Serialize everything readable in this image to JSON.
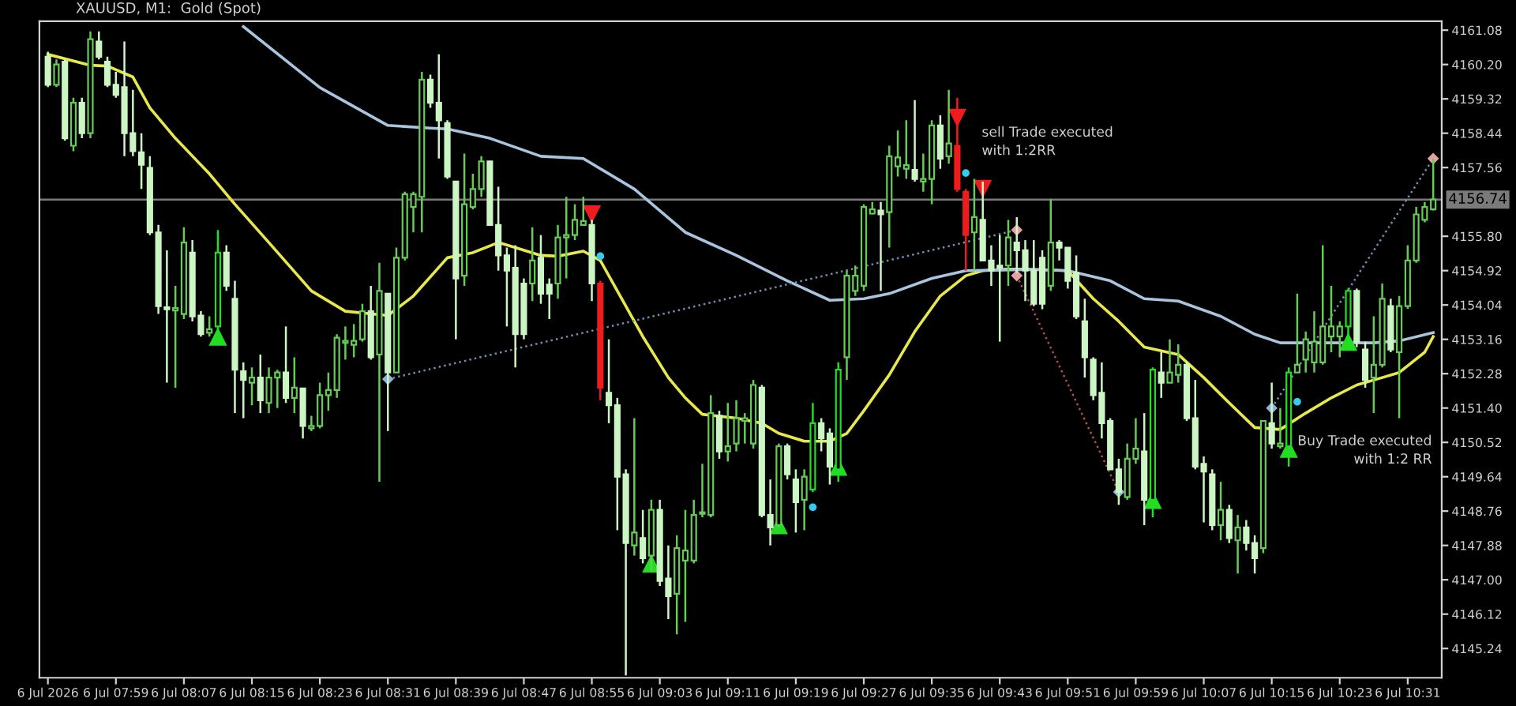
{
  "chart_data": {
    "type": "candlestick",
    "title": "XAUUSD, M1:  Gold (Spot)",
    "x": [
      "2026-07-06T07:51",
      "2026-07-06T07:52",
      "2026-07-06T07:53",
      "2026-07-06T07:54",
      "2026-07-06T07:55",
      "2026-07-06T07:56",
      "2026-07-06T07:57",
      "2026-07-06T07:58",
      "2026-07-06T07:59",
      "2026-07-06T08:00",
      "2026-07-06T08:01",
      "2026-07-06T08:02",
      "2026-07-06T08:03",
      "2026-07-06T08:04",
      "2026-07-06T08:05",
      "2026-07-06T08:06",
      "2026-07-06T08:07",
      "2026-07-06T08:08",
      "2026-07-06T08:09",
      "2026-07-06T08:10",
      "2026-07-06T08:11",
      "2026-07-06T08:12",
      "2026-07-06T08:13",
      "2026-07-06T08:14",
      "2026-07-06T08:15",
      "2026-07-06T08:16",
      "2026-07-06T08:17",
      "2026-07-06T08:18",
      "2026-07-06T08:19",
      "2026-07-06T08:20",
      "2026-07-06T08:21",
      "2026-07-06T08:22",
      "2026-07-06T08:23",
      "2026-07-06T08:24",
      "2026-07-06T08:25",
      "2026-07-06T08:26",
      "2026-07-06T08:27",
      "2026-07-06T08:28",
      "2026-07-06T08:29",
      "2026-07-06T08:30",
      "2026-07-06T08:31",
      "2026-07-06T08:32",
      "2026-07-06T08:33",
      "2026-07-06T08:34",
      "2026-07-06T08:35",
      "2026-07-06T08:36",
      "2026-07-06T08:37",
      "2026-07-06T08:38",
      "2026-07-06T08:39",
      "2026-07-06T08:40",
      "2026-07-06T08:41",
      "2026-07-06T08:42",
      "2026-07-06T08:43",
      "2026-07-06T08:44",
      "2026-07-06T08:45",
      "2026-07-06T08:46",
      "2026-07-06T08:47",
      "2026-07-06T08:48",
      "2026-07-06T08:49",
      "2026-07-06T08:50",
      "2026-07-06T08:51",
      "2026-07-06T08:52",
      "2026-07-06T08:53",
      "2026-07-06T08:54",
      "2026-07-06T08:55",
      "2026-07-06T08:56",
      "2026-07-06T08:57",
      "2026-07-06T08:58",
      "2026-07-06T08:59",
      "2026-07-06T09:00",
      "2026-07-06T09:01",
      "2026-07-06T09:02",
      "2026-07-06T09:03",
      "2026-07-06T09:04",
      "2026-07-06T09:05",
      "2026-07-06T09:06",
      "2026-07-06T09:07",
      "2026-07-06T09:08",
      "2026-07-06T09:09",
      "2026-07-06T09:10",
      "2026-07-06T09:11",
      "2026-07-06T09:12",
      "2026-07-06T09:13",
      "2026-07-06T09:14",
      "2026-07-06T09:15",
      "2026-07-06T09:16",
      "2026-07-06T09:17",
      "2026-07-06T09:18",
      "2026-07-06T09:19",
      "2026-07-06T09:20",
      "2026-07-06T09:21",
      "2026-07-06T09:22",
      "2026-07-06T09:23",
      "2026-07-06T09:24",
      "2026-07-06T09:25",
      "2026-07-06T09:26",
      "2026-07-06T09:27",
      "2026-07-06T09:28",
      "2026-07-06T09:29",
      "2026-07-06T09:30",
      "2026-07-06T09:31",
      "2026-07-06T09:32",
      "2026-07-06T09:33",
      "2026-07-06T09:34",
      "2026-07-06T09:35",
      "2026-07-06T09:36",
      "2026-07-06T09:37",
      "2026-07-06T09:38",
      "2026-07-06T09:39",
      "2026-07-06T09:40",
      "2026-07-06T09:41",
      "2026-07-06T09:42",
      "2026-07-06T09:43",
      "2026-07-06T09:44",
      "2026-07-06T09:45",
      "2026-07-06T09:46",
      "2026-07-06T09:47",
      "2026-07-06T09:48",
      "2026-07-06T09:49",
      "2026-07-06T09:50",
      "2026-07-06T09:51",
      "2026-07-06T09:52",
      "2026-07-06T09:53",
      "2026-07-06T09:54",
      "2026-07-06T09:55",
      "2026-07-06T09:56",
      "2026-07-06T09:57",
      "2026-07-06T09:58",
      "2026-07-06T09:59",
      "2026-07-06T10:00",
      "2026-07-06T10:01",
      "2026-07-06T10:02",
      "2026-07-06T10:03",
      "2026-07-06T10:04",
      "2026-07-06T10:05",
      "2026-07-06T10:06",
      "2026-07-06T10:07",
      "2026-07-06T10:08",
      "2026-07-06T10:09",
      "2026-07-06T10:10",
      "2026-07-06T10:11",
      "2026-07-06T10:12",
      "2026-07-06T10:13",
      "2026-07-06T10:14",
      "2026-07-06T10:15",
      "2026-07-06T10:16",
      "2026-07-06T10:17",
      "2026-07-06T10:18",
      "2026-07-06T10:19",
      "2026-07-06T10:20",
      "2026-07-06T10:21",
      "2026-07-06T10:22",
      "2026-07-06T10:23",
      "2026-07-06T10:24",
      "2026-07-06T10:25",
      "2026-07-06T10:26",
      "2026-07-06T10:27",
      "2026-07-06T10:28",
      "2026-07-06T10:29",
      "2026-07-06T10:30",
      "2026-07-06T10:31",
      "2026-07-06T10:32",
      "2026-07-06T10:33",
      "2026-07-06T10:34"
    ],
    "ohlc": [
      [
        4160.4,
        4160.53,
        4159.62,
        4159.68
      ],
      [
        4159.68,
        4160.33,
        4159.62,
        4160.2
      ],
      [
        4160.27,
        4160.33,
        4158.25,
        4158.31
      ],
      [
        4158.12,
        4159.35,
        4157.98,
        4159.22
      ],
      [
        4159.22,
        4159.35,
        4158.31,
        4158.44
      ],
      [
        4158.44,
        4161.05,
        4158.31,
        4160.85
      ],
      [
        4160.79,
        4161.05,
        4160.33,
        4160.4
      ],
      [
        4160.27,
        4160.4,
        4159.62,
        4159.68
      ],
      [
        4159.68,
        4160.01,
        4159.35,
        4159.42
      ],
      [
        4159.62,
        4160.79,
        4157.85,
        4158.44
      ],
      [
        4158.44,
        4159.55,
        4157.85,
        4157.98
      ],
      [
        4157.95,
        4158.44,
        4157.01,
        4157.63
      ],
      [
        4157.55,
        4157.85,
        4155.83,
        4155.9
      ],
      [
        4155.9,
        4156.09,
        4153.81,
        4154.01
      ],
      [
        4153.98,
        4155.44,
        4152.05,
        4153.93
      ],
      [
        4153.9,
        4154.53,
        4151.92,
        4153.96
      ],
      [
        4153.81,
        4156.03,
        4153.68,
        4155.64
      ],
      [
        4155.38,
        4155.7,
        4153.62,
        4153.75
      ],
      [
        4153.77,
        4153.88,
        4153.23,
        4153.29
      ],
      [
        4153.33,
        4153.75,
        4153.23,
        4153.42
      ],
      [
        4153.49,
        4155.96,
        4153.42,
        4155.38
      ],
      [
        4155.38,
        4155.57,
        4154.4,
        4154.53
      ],
      [
        4154.2,
        4154.66,
        4151.27,
        4152.38
      ],
      [
        4152.34,
        4152.57,
        4151.14,
        4152.12
      ],
      [
        4152.05,
        4152.44,
        4151.47,
        4152.18
      ],
      [
        4152.18,
        4152.77,
        4151.27,
        4151.6
      ],
      [
        4151.53,
        4152.44,
        4151.27,
        4152.18
      ],
      [
        4152.18,
        4152.38,
        4151.4,
        4152.31
      ],
      [
        4152.31,
        4153.49,
        4151.53,
        4151.66
      ],
      [
        4151.66,
        4152.7,
        4151.27,
        4151.92
      ],
      [
        4151.9,
        4151.92,
        4150.62,
        4150.94
      ],
      [
        4150.88,
        4151.2,
        4150.81,
        4150.94
      ],
      [
        4150.94,
        4152.05,
        4150.88,
        4151.73
      ],
      [
        4151.73,
        4152.31,
        4151.33,
        4151.86
      ],
      [
        4151.86,
        4153.29,
        4151.66,
        4153.2
      ],
      [
        4153.07,
        4153.49,
        4152.64,
        4153.12
      ],
      [
        4153.02,
        4153.55,
        4152.7,
        4153.12
      ],
      [
        4153.16,
        4154.07,
        4153.1,
        4153.88
      ],
      [
        4153.88,
        4154.53,
        4152.64,
        4152.7
      ],
      [
        4152.77,
        4155.12,
        4149.51,
        4154.4
      ],
      [
        4154.33,
        4154.33,
        4150.81,
        4152.31
      ],
      [
        4152.31,
        4155.51,
        4152.31,
        4155.25
      ],
      [
        4155.25,
        4156.94,
        4155.18,
        4156.88
      ],
      [
        4156.55,
        4156.94,
        4155.9,
        4156.88
      ],
      [
        4156.81,
        4160.01,
        4155.9,
        4159.81
      ],
      [
        4159.81,
        4159.94,
        4159.09,
        4159.22
      ],
      [
        4159.22,
        4160.46,
        4157.79,
        4158.77
      ],
      [
        4158.7,
        4158.77,
        4157.27,
        4157.33
      ],
      [
        4157.2,
        4157.2,
        4153.16,
        4154.72
      ],
      [
        4154.79,
        4157.92,
        4154.53,
        4156.62
      ],
      [
        4156.55,
        4157.4,
        4156.49,
        4157.01
      ],
      [
        4157.01,
        4157.85,
        4156.81,
        4157.72
      ],
      [
        4157.72,
        4157.72,
        4156.09,
        4156.09
      ],
      [
        4156.09,
        4157.07,
        4154.92,
        4155.31
      ],
      [
        4155.31,
        4155.51,
        4153.49,
        4154.92
      ],
      [
        4154.99,
        4155.57,
        4152.44,
        4153.29
      ],
      [
        4154.59,
        4154.72,
        4153.16,
        4153.29
      ],
      [
        4154.59,
        4156.03,
        4154.14,
        4155.18
      ],
      [
        4155.25,
        4155.83,
        4154.07,
        4154.33
      ],
      [
        4154.56,
        4154.72,
        4153.68,
        4154.33
      ],
      [
        4154.59,
        4156.09,
        4154.2,
        4155.77
      ],
      [
        4155.77,
        4156.81,
        4154.72,
        4155.83
      ],
      [
        4155.83,
        4156.62,
        4155.7,
        4156.22
      ],
      [
        4156.09,
        4156.81,
        4156.09,
        4156.19
      ],
      [
        4156.09,
        4156.22,
        4154.14,
        4154.59
      ],
      [
        4154.59,
        4154.66,
        4151.6,
        4151.92
      ],
      [
        4151.79,
        4153.16,
        4151.01,
        4151.47
      ],
      [
        4151.47,
        4151.66,
        4148.27,
        4149.64
      ],
      [
        4149.7,
        4149.83,
        4144.55,
        4147.94
      ],
      [
        4147.88,
        4151.14,
        4147.62,
        4148.21
      ],
      [
        4148.07,
        4148.79,
        4147.42,
        4147.55
      ],
      [
        4147.62,
        4149.05,
        4147.23,
        4148.79
      ],
      [
        4148.79,
        4149.05,
        4146.84,
        4146.97
      ],
      [
        4147.03,
        4147.88,
        4145.99,
        4146.58
      ],
      [
        4146.64,
        4148.14,
        4145.6,
        4147.81
      ],
      [
        4147.49,
        4148.79,
        4145.92,
        4147.75
      ],
      [
        4147.49,
        4149.05,
        4147.42,
        4148.66
      ],
      [
        4148.69,
        4149.97,
        4148.6,
        4148.73
      ],
      [
        4148.66,
        4151.73,
        4148.6,
        4151.27
      ],
      [
        4151.2,
        4151.33,
        4150.1,
        4150.29
      ],
      [
        4150.29,
        4151.53,
        4150.03,
        4150.42
      ],
      [
        4150.49,
        4151.6,
        4150.29,
        4151.14
      ],
      [
        4151.07,
        4151.27,
        4150.49,
        4151.14
      ],
      [
        4150.49,
        4152.12,
        4150.36,
        4151.99
      ],
      [
        4151.92,
        4151.99,
        4148.6,
        4148.66
      ],
      [
        4148.66,
        4149.57,
        4147.88,
        4148.34
      ],
      [
        4148.4,
        4150.49,
        4148.34,
        4150.42
      ],
      [
        4150.42,
        4150.49,
        4149.57,
        4149.7
      ],
      [
        4149.57,
        4149.83,
        4148.21,
        4148.99
      ],
      [
        4149.05,
        4149.83,
        4148.27,
        4149.64
      ],
      [
        4149.31,
        4151.53,
        4149.25,
        4151.01
      ],
      [
        4151.01,
        4151.14,
        4150.29,
        4150.62
      ],
      [
        4150.75,
        4150.88,
        4149.44,
        4149.9
      ],
      [
        4149.83,
        4152.57,
        4149.51,
        4152.38
      ],
      [
        4152.7,
        4154.92,
        4152.12,
        4154.79
      ],
      [
        4154.4,
        4155.05,
        4154.27,
        4154.79
      ],
      [
        4154.53,
        4156.62,
        4154.4,
        4156.55
      ],
      [
        4156.38,
        4156.68,
        4156.36,
        4156.49
      ],
      [
        4156.46,
        4156.68,
        4154.4,
        4156.36
      ],
      [
        4156.42,
        4158.12,
        4155.51,
        4157.85
      ],
      [
        4157.59,
        4158.51,
        4157.33,
        4157.82
      ],
      [
        4157.53,
        4158.77,
        4157.27,
        4157.62
      ],
      [
        4157.5,
        4159.29,
        4157.2,
        4157.27
      ],
      [
        4157.2,
        4157.92,
        4156.94,
        4157.27
      ],
      [
        4157.27,
        4158.77,
        4156.62,
        4158.64
      ],
      [
        4158.64,
        4158.9,
        4157.53,
        4157.79
      ],
      [
        4157.85,
        4159.55,
        4157.66,
        4158.18
      ],
      [
        4158.12,
        4159.35,
        4156.94,
        4157.01
      ],
      [
        4156.94,
        4157.01,
        4154.92,
        4155.83
      ],
      [
        4155.9,
        4157.27,
        4154.92,
        4156.29
      ],
      [
        4156.22,
        4157.2,
        4155.18,
        4155.18
      ],
      [
        4155.18,
        4155.57,
        4154.53,
        4154.92
      ],
      [
        4155.05,
        4155.83,
        4153.1,
        4154.99
      ],
      [
        4155.05,
        4156.22,
        4154.53,
        4155.77
      ],
      [
        4155.64,
        4156.29,
        4154.86,
        4155.44
      ],
      [
        4155.44,
        4155.7,
        4154.14,
        4154.92
      ],
      [
        4154.92,
        4155.7,
        4154.01,
        4154.07
      ],
      [
        4155.25,
        4155.44,
        4153.93,
        4154.07
      ],
      [
        4154.53,
        4156.75,
        4154.4,
        4155.64
      ],
      [
        4155.64,
        4155.7,
        4155.18,
        4155.51
      ],
      [
        4155.51,
        4155.51,
        4154.46,
        4154.66
      ],
      [
        4154.86,
        4155.31,
        4153.68,
        4153.75
      ],
      [
        4153.62,
        4154.2,
        4152.18,
        4152.7
      ],
      [
        4152.64,
        4152.7,
        4151.6,
        4151.73
      ],
      [
        4151.79,
        4152.57,
        4150.62,
        4151.01
      ],
      [
        4151.07,
        4151.14,
        4149.83,
        4149.83
      ],
      [
        4149.83,
        4150.1,
        4148.92,
        4149.25
      ],
      [
        4149.12,
        4150.49,
        4149.05,
        4150.1
      ],
      [
        4150.1,
        4151.14,
        4149.97,
        4150.36
      ],
      [
        4150.29,
        4151.27,
        4148.4,
        4149.05
      ],
      [
        4149.05,
        4152.44,
        4148.6,
        4152.38
      ],
      [
        4152.31,
        4152.83,
        4151.66,
        4152.05
      ],
      [
        4152.05,
        4153.16,
        4152.05,
        4152.31
      ],
      [
        4152.25,
        4153.03,
        4152.05,
        4152.51
      ],
      [
        4152.51,
        4152.57,
        4151.07,
        4151.14
      ],
      [
        4151.14,
        4152.12,
        4149.83,
        4149.9
      ],
      [
        4149.97,
        4150.16,
        4148.47,
        4149.77
      ],
      [
        4149.7,
        4149.83,
        4148.27,
        4148.4
      ],
      [
        4148.4,
        4149.51,
        4148.01,
        4148.79
      ],
      [
        4148.79,
        4148.92,
        4147.94,
        4148.07
      ],
      [
        4148.01,
        4148.66,
        4147.16,
        4148.34
      ],
      [
        4148.34,
        4148.53,
        4147.75,
        4147.94
      ],
      [
        4147.94,
        4148.14,
        4147.16,
        4147.55
      ],
      [
        4147.81,
        4151.07,
        4147.68,
        4151.07
      ],
      [
        4151.01,
        4152.05,
        4150.36,
        4150.49
      ],
      [
        4150.42,
        4151.4,
        4150.36,
        4150.49
      ],
      [
        4150.42,
        4152.44,
        4149.9,
        4152.31
      ],
      [
        4152.31,
        4154.33,
        4152.31,
        4152.51
      ],
      [
        4152.64,
        4153.36,
        4152.31,
        4153.16
      ],
      [
        4152.57,
        4153.88,
        4152.31,
        4153.1
      ],
      [
        4152.57,
        4155.57,
        4152.51,
        4153.49
      ],
      [
        4153.23,
        4154.53,
        4152.83,
        4153.49
      ],
      [
        4153.23,
        4153.62,
        4152.7,
        4153.49
      ],
      [
        4153.49,
        4154.46,
        4153.03,
        4154.4
      ],
      [
        4154.4,
        4154.46,
        4152.96,
        4153.1
      ],
      [
        4152.9,
        4153.1,
        4151.92,
        4152.12
      ],
      [
        4152.18,
        4153.75,
        4151.27,
        4152.51
      ],
      [
        4152.51,
        4154.59,
        4152.44,
        4154.2
      ],
      [
        4154.01,
        4154.2,
        4152.83,
        4152.9
      ],
      [
        4152.83,
        4154.27,
        4151.14,
        4154.01
      ],
      [
        4154.01,
        4155.57,
        4153.94,
        4155.18
      ],
      [
        4155.18,
        4156.55,
        4155.12,
        4156.36
      ],
      [
        4156.22,
        4156.68,
        4156.16,
        4156.55
      ],
      [
        4156.49,
        4157.79,
        4156.46,
        4156.74
      ]
    ],
    "colors": [
      "#ccf5c4",
      "#66cc55",
      "#ccf5c4",
      "#66cc55",
      "#ccf5c4",
      "#66cc55",
      "#ccf5c4",
      "#ccf5c4",
      "#ccf5c4",
      "#ccf5c4",
      "#ccf5c4",
      "#ccf5c4",
      "#ccf5c4",
      "#ccf5c4",
      "#ccf5c4",
      "#66cc55",
      "#66cc55",
      "#ccf5c4",
      "#ccf5c4",
      "#66cc55",
      "#22dd22",
      "#ccf5c4",
      "#ccf5c4",
      "#ccf5c4",
      "#66cc55",
      "#ccf5c4",
      "#66cc55",
      "#66cc55",
      "#ccf5c4",
      "#66cc55",
      "#ccf5c4",
      "#66cc55",
      "#66cc55",
      "#66cc55",
      "#66cc55",
      "#66cc55",
      "#66cc55",
      "#66cc55",
      "#ccf5c4",
      "#66cc55",
      "#ccf5c4",
      "#66cc55",
      "#66cc55",
      "#66cc55",
      "#66cc55",
      "#ccf5c4",
      "#ccf5c4",
      "#ccf5c4",
      "#ccf5c4",
      "#66cc55",
      "#66cc55",
      "#66cc55",
      "#ccf5c4",
      "#ccf5c4",
      "#ccf5c4",
      "#ccf5c4",
      "#ccf5c4",
      "#66cc55",
      "#ccf5c4",
      "#ccf5c4",
      "#66cc55",
      "#66cc55",
      "#66cc55",
      "#66cc55",
      "#ccf5c4",
      "#ee1c1c",
      "#ccf5c4",
      "#ccf5c4",
      "#ccf5c4",
      "#66cc55",
      "#ccf5c4",
      "#66cc55",
      "#ccf5c4",
      "#ccf5c4",
      "#66cc55",
      "#66cc55",
      "#66cc55",
      "#66cc55",
      "#66cc55",
      "#ccf5c4",
      "#66cc55",
      "#66cc55",
      "#66cc55",
      "#66cc55",
      "#ccf5c4",
      "#ccf5c4",
      "#66cc55",
      "#ccf5c4",
      "#ccf5c4",
      "#66cc55",
      "#22dd22",
      "#ccf5c4",
      "#ccf5c4",
      "#22dd22",
      "#66cc55",
      "#66cc55",
      "#66cc55",
      "#66cc55",
      "#ccf5c4",
      "#66cc55",
      "#66cc55",
      "#66cc55",
      "#ccf5c4",
      "#66cc55",
      "#66cc55",
      "#ccf5c4",
      "#66cc55",
      "#ee1c1c",
      "#ee1c1c",
      "#66cc55",
      "#ccf5c4",
      "#ccf5c4",
      "#ccf5c4",
      "#66cc55",
      "#ccf5c4",
      "#ccf5c4",
      "#ccf5c4",
      "#ccf5c4",
      "#66cc55",
      "#ccf5c4",
      "#ccf5c4",
      "#ccf5c4",
      "#ccf5c4",
      "#ccf5c4",
      "#ccf5c4",
      "#ccf5c4",
      "#ccf5c4",
      "#66cc55",
      "#66cc55",
      "#ccf5c4",
      "#22dd22",
      "#ccf5c4",
      "#66cc55",
      "#66cc55",
      "#ccf5c4",
      "#ccf5c4",
      "#ccf5c4",
      "#ccf5c4",
      "#66cc55",
      "#ccf5c4",
      "#66cc55",
      "#ccf5c4",
      "#ccf5c4",
      "#66cc55",
      "#ccf5c4",
      "#66cc55",
      "#22dd22",
      "#66cc55",
      "#66cc55",
      "#66cc55",
      "#66cc55",
      "#66cc55",
      "#66cc55",
      "#22dd22",
      "#ccf5c4",
      "#ccf5c4",
      "#66cc55",
      "#66cc55",
      "#ccf5c4",
      "#66cc55",
      "#66cc55",
      "#66cc55",
      "#66cc55",
      "#66cc55"
    ],
    "series": [
      {
        "type": "line",
        "color": "#e8e84a",
        "line_style": "solid",
        "x": [
          "2026-07-06T07:51",
          "2026-07-06T07:56",
          "2026-07-06T07:58",
          "2026-07-06T08:01",
          "2026-07-06T08:03",
          "2026-07-06T08:06",
          "2026-07-06T08:10",
          "2026-07-06T08:13",
          "2026-07-06T08:17",
          "2026-07-06T08:22",
          "2026-07-06T08:26",
          "2026-07-06T08:31",
          "2026-07-06T08:34",
          "2026-07-06T08:38",
          "2026-07-06T08:41",
          "2026-07-06T08:44",
          "2026-07-06T08:46",
          "2026-07-06T08:49",
          "2026-07-06T08:51",
          "2026-07-06T08:54",
          "2026-07-06T08:56",
          "2026-07-06T08:58",
          "2026-07-06T09:01",
          "2026-07-06T09:04",
          "2026-07-06T09:06",
          "2026-07-06T09:08",
          "2026-07-06T09:12",
          "2026-07-06T09:15",
          "2026-07-06T09:17",
          "2026-07-06T09:20",
          "2026-07-06T09:23",
          "2026-07-06T09:25",
          "2026-07-06T09:27",
          "2026-07-06T09:30",
          "2026-07-06T09:33",
          "2026-07-06T09:36",
          "2026-07-06T09:39",
          "2026-07-06T09:41",
          "2026-07-06T09:44",
          "2026-07-06T09:46",
          "2026-07-06T09:51",
          "2026-07-06T09:54",
          "2026-07-06T09:57",
          "2026-07-06T10:00",
          "2026-07-06T10:04",
          "2026-07-06T10:07",
          "2026-07-06T10:10",
          "2026-07-06T10:13",
          "2026-07-06T10:16",
          "2026-07-06T10:19",
          "2026-07-06T10:22",
          "2026-07-06T10:25",
          "2026-07-06T10:28",
          "2026-07-06T10:30",
          "2026-07-06T10:33",
          "2026-07-06T10:34"
        ],
        "values": [
          4160.46,
          4160.18,
          4160.16,
          4159.88,
          4159.09,
          4158.31,
          4157.4,
          4156.62,
          4155.64,
          4154.4,
          4153.88,
          4153.77,
          4154.27,
          4155.25,
          4155.38,
          4155.64,
          4155.51,
          4155.31,
          4155.29,
          4155.42,
          4155.18,
          4154.4,
          4153.23,
          4152.18,
          4151.66,
          4151.24,
          4151.14,
          4151.01,
          4150.75,
          4150.55,
          4150.55,
          4150.75,
          4151.33,
          4152.25,
          4153.36,
          4154.27,
          4154.79,
          4154.92,
          4154.96,
          4154.96,
          4154.92,
          4154.2,
          4153.62,
          4152.96,
          4152.77,
          4152.18,
          4151.53,
          4150.9,
          4150.85,
          4151.27,
          4151.66,
          4151.99,
          4152.18,
          4152.31,
          4152.83,
          4153.23
        ]
      },
      {
        "type": "line",
        "color": "#a9c4de",
        "line_style": "solid",
        "x": [
          "2026-07-06T08:14",
          "2026-07-06T08:23",
          "2026-07-06T08:31",
          "2026-07-06T08:36",
          "2026-07-06T08:38",
          "2026-07-06T08:43",
          "2026-07-06T08:49",
          "2026-07-06T08:54",
          "2026-07-06T09:00",
          "2026-07-06T09:06",
          "2026-07-06T09:12",
          "2026-07-06T09:18",
          "2026-07-06T09:23",
          "2026-07-06T09:27",
          "2026-07-06T09:30",
          "2026-07-06T09:35",
          "2026-07-06T09:39",
          "2026-07-06T09:47",
          "2026-07-06T09:51",
          "2026-07-06T09:56",
          "2026-07-06T10:00",
          "2026-07-06T10:04",
          "2026-07-06T10:09",
          "2026-07-06T10:13",
          "2026-07-06T10:16",
          "2026-07-06T10:21",
          "2026-07-06T10:27",
          "2026-07-06T10:30",
          "2026-07-06T10:34"
        ],
        "values": [
          4161.17,
          4159.61,
          4158.64,
          4158.57,
          4158.55,
          4158.31,
          4157.85,
          4157.79,
          4157.01,
          4155.9,
          4155.31,
          4154.66,
          4154.16,
          4154.2,
          4154.33,
          4154.72,
          4154.92,
          4154.95,
          4154.92,
          4154.66,
          4154.2,
          4154.14,
          4153.75,
          4153.29,
          4153.07,
          4153.07,
          4153.07,
          4153.12,
          4153.33
        ]
      },
      {
        "type": "line",
        "color": "#6f8fb0",
        "line_style": "dotted",
        "x": [
          "2026-07-06T08:31",
          "2026-07-06T09:45"
        ],
        "values": [
          4152.14,
          4155.96
        ]
      },
      {
        "type": "line",
        "color": "#b05050",
        "line_style": "dotted",
        "x": [
          "2026-07-06T09:45",
          "2026-07-06T09:57"
        ],
        "values": [
          4154.79,
          4149.25
        ]
      },
      {
        "type": "line",
        "color": "#6f8fb0",
        "line_style": "dotted",
        "x": [
          "2026-07-06T10:15",
          "2026-07-06T10:34"
        ],
        "values": [
          4151.4,
          4157.79
        ]
      },
      {
        "type": "scatter",
        "color": "#8fb4d8",
        "marker": "diamond",
        "x": [
          "2026-07-06T08:31",
          "2026-07-06T09:57",
          "2026-07-06T10:15"
        ],
        "values": [
          4152.14,
          4149.25,
          4151.4
        ]
      },
      {
        "type": "scatter",
        "color": "#e8a0a0",
        "marker": "diamond",
        "x": [
          "2026-07-06T09:45",
          "2026-07-06T09:45",
          "2026-07-06T10:34"
        ],
        "values": [
          4155.96,
          4154.79,
          4157.79
        ]
      },
      {
        "type": "scatter",
        "color": "#33ccee",
        "marker": "circle",
        "x": [
          "2026-07-06T08:56",
          "2026-07-06T09:21",
          "2026-07-06T09:39",
          "2026-07-06T10:18"
        ],
        "values": [
          4155.29,
          4148.86,
          4157.42,
          4151.56
        ]
      },
      {
        "type": "scatter",
        "color": "#22dd22",
        "marker": "triangle",
        "x": [
          "2026-07-06T08:11",
          "2026-07-06T09:02",
          "2026-07-06T09:17",
          "2026-07-06T09:24",
          "2026-07-06T10:01",
          "2026-07-06T10:17",
          "2026-07-06T10:24"
        ],
        "values": [
          4153.23,
          4147.42,
          4148.4,
          4149.9,
          4149.05,
          4150.36,
          4153.1
        ]
      },
      {
        "type": "scatter",
        "color": "#ee1c1c",
        "marker": "triangle_down",
        "x": [
          "2026-07-06T08:55",
          "2026-07-06T09:38",
          "2026-07-06T09:41"
        ],
        "values": [
          4156.36,
          4158.83,
          4157.01
        ]
      }
    ],
    "ref_lines": [
      {
        "axis": "y",
        "value": 4156.74,
        "label": "4156.74",
        "color": "#7a7a7a",
        "line_style": "solid"
      }
    ],
    "annotations": [
      "sell Trade executed\nwith 1:2RR",
      "Buy Trade executed\nwith 1:2 RR"
    ],
    "xlim": [
      "2026-07-06T07:50",
      "2026-07-06T10:35"
    ],
    "xticks": [
      {
        "value": "2026-07-06T07:51",
        "label": "6 Jul 2026"
      },
      {
        "value": "2026-07-06T07:59",
        "label": "6 Jul 07:59"
      },
      {
        "value": "2026-07-06T08:07",
        "label": "6 Jul 08:07"
      },
      {
        "value": "2026-07-06T08:15",
        "label": "6 Jul 08:15"
      },
      {
        "value": "2026-07-06T08:23",
        "label": "6 Jul 08:23"
      },
      {
        "value": "2026-07-06T08:31",
        "label": "6 Jul 08:31"
      },
      {
        "value": "2026-07-06T08:39",
        "label": "6 Jul 08:39"
      },
      {
        "value": "2026-07-06T08:47",
        "label": "6 Jul 08:47"
      },
      {
        "value": "2026-07-06T08:55",
        "label": "6 Jul 08:55"
      },
      {
        "value": "2026-07-06T09:03",
        "label": "6 Jul 09:03"
      },
      {
        "value": "2026-07-06T09:11",
        "label": "6 Jul 09:11"
      },
      {
        "value": "2026-07-06T09:19",
        "label": "6 Jul 09:19"
      },
      {
        "value": "2026-07-06T09:27",
        "label": "6 Jul 09:27"
      },
      {
        "value": "2026-07-06T09:35",
        "label": "6 Jul 09:35"
      },
      {
        "value": "2026-07-06T09:43",
        "label": "6 Jul 09:43"
      },
      {
        "value": "2026-07-06T09:51",
        "label": "6 Jul 09:51"
      },
      {
        "value": "2026-07-06T09:59",
        "label": "6 Jul 09:59"
      },
      {
        "value": "2026-07-06T10:07",
        "label": "6 Jul 10:07"
      },
      {
        "value": "2026-07-06T10:15",
        "label": "6 Jul 10:15"
      },
      {
        "value": "2026-07-06T10:23",
        "label": "6 Jul 10:23"
      },
      {
        "value": "2026-07-06T10:31",
        "label": "6 Jul 10:31"
      }
    ],
    "ylim": [
      4144.49,
      4161.31
    ],
    "yticks": [
      {
        "value": 4161.08,
        "label": "4161.08"
      },
      {
        "value": 4160.2,
        "label": "4160.20"
      },
      {
        "value": 4159.32,
        "label": "4159.32"
      },
      {
        "value": 4158.44,
        "label": "4158.44"
      },
      {
        "value": 4157.56,
        "label": "4157.56"
      },
      {
        "value": 4155.8,
        "label": "4155.80"
      },
      {
        "value": 4154.92,
        "label": "4154.92"
      },
      {
        "value": 4154.04,
        "label": "4154.04"
      },
      {
        "value": 4153.16,
        "label": "4153.16"
      },
      {
        "value": 4152.28,
        "label": "4152.28"
      },
      {
        "value": 4151.4,
        "label": "4151.40"
      },
      {
        "value": 4150.52,
        "label": "4150.52"
      },
      {
        "value": 4149.64,
        "label": "4149.64"
      },
      {
        "value": 4148.76,
        "label": "4148.76"
      },
      {
        "value": 4147.88,
        "label": "4147.88"
      },
      {
        "value": 4147.0,
        "label": "4147.00"
      },
      {
        "value": 4146.12,
        "label": "4146.12"
      },
      {
        "value": 4145.24,
        "label": "4145.24"
      }
    ],
    "grid": false,
    "legend": false
  }
}
